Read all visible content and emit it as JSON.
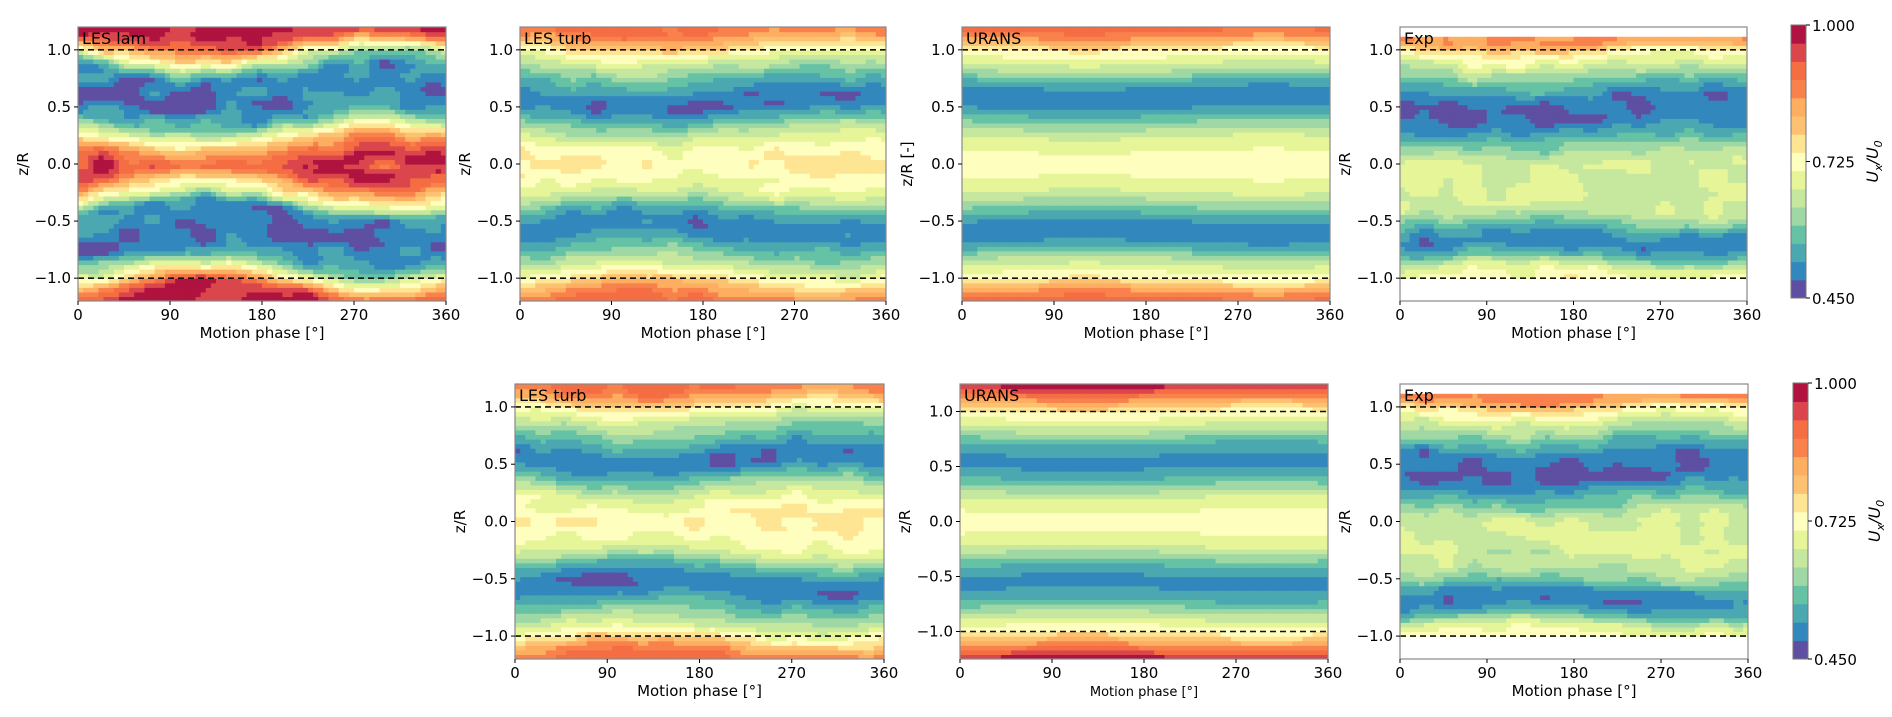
{
  "figure": {
    "description": "Phase-averaged streamwise velocity contours U_x/U_0 versus motion phase and z/R for several simulation methods and experiment"
  },
  "colorbar": {
    "label_main": "U",
    "label_sub1": "x",
    "label_sep": "/U",
    "label_sub2": "0",
    "min": 0.45,
    "max": 1.0,
    "ticks": [
      "1.000",
      "0.725",
      "0.450"
    ],
    "tick_values": [
      1.0,
      0.725,
      0.45
    ],
    "levels": 15,
    "colors": [
      "#5e4fa2",
      "#3288bd",
      "#4ba8b0",
      "#66c2a5",
      "#9fd8a4",
      "#c6e89e",
      "#e6f598",
      "#fefebe",
      "#fee593",
      "#fdc271",
      "#fdae61",
      "#f8814c",
      "#f46d43",
      "#da464c",
      "#b0133f"
    ]
  },
  "chart_data": [
    {
      "id": "top-les-lam",
      "row": 1,
      "type": "heatmap",
      "title": "LES lam",
      "xlabel": "Motion phase [°]",
      "ylabel": "z/R",
      "xlim": [
        0,
        360
      ],
      "ylim": [
        -1.2,
        1.2
      ],
      "xticks": [
        "0",
        "90",
        "180",
        "270",
        "360"
      ],
      "yticks": [
        "1.0",
        "0.5",
        "0.0",
        "−0.5",
        "−1.0"
      ],
      "ytick_values": [
        1.0,
        0.5,
        0.0,
        -0.5,
        -1.0
      ],
      "reference_lines": [
        1.0,
        -1.0
      ],
      "profile_z": [
        -1.2,
        -1.1,
        -1.0,
        -0.9,
        -0.8,
        -0.6,
        -0.4,
        -0.3,
        -0.2,
        -0.1,
        0.0,
        0.1,
        0.2,
        0.3,
        0.4,
        0.6,
        0.8,
        0.9,
        1.0,
        1.1,
        1.2
      ],
      "profile_u": [
        0.98,
        0.92,
        0.76,
        0.6,
        0.52,
        0.48,
        0.52,
        0.68,
        0.8,
        0.92,
        0.96,
        0.9,
        0.8,
        0.68,
        0.55,
        0.48,
        0.52,
        0.62,
        0.78,
        0.94,
        0.98
      ],
      "phase_modulation": 0.05,
      "noise": 0.05
    },
    {
      "id": "top-les-turb",
      "row": 1,
      "type": "heatmap",
      "title": "LES turb",
      "xlabel": "Motion phase [°]",
      "ylabel": "z/R",
      "xlim": [
        0,
        360
      ],
      "ylim": [
        -1.2,
        1.2
      ],
      "xticks": [
        "0",
        "90",
        "180",
        "270",
        "360"
      ],
      "yticks": [
        "1.0",
        "0.5",
        "0.0",
        "−0.5",
        "−1.0"
      ],
      "ytick_values": [
        1.0,
        0.5,
        0.0,
        -0.5,
        -1.0
      ],
      "reference_lines": [
        1.0,
        -1.0
      ],
      "profile_z": [
        -1.2,
        -1.1,
        -1.0,
        -0.9,
        -0.8,
        -0.6,
        -0.5,
        -0.4,
        -0.3,
        -0.2,
        0.0,
        0.2,
        0.3,
        0.4,
        0.5,
        0.6,
        0.8,
        0.9,
        1.0,
        1.1,
        1.2
      ],
      "profile_u": [
        0.9,
        0.84,
        0.74,
        0.66,
        0.6,
        0.5,
        0.5,
        0.55,
        0.64,
        0.7,
        0.75,
        0.7,
        0.64,
        0.56,
        0.5,
        0.5,
        0.6,
        0.66,
        0.74,
        0.84,
        0.9
      ],
      "phase_modulation": 0.03,
      "noise": 0.025
    },
    {
      "id": "top-urans",
      "row": 1,
      "type": "heatmap",
      "title": "URANS",
      "xlabel": "Motion phase [°]",
      "ylabel": "z/R [-]",
      "xlim": [
        0,
        360
      ],
      "ylim": [
        -1.2,
        1.2
      ],
      "xticks": [
        "0",
        "90",
        "180",
        "270",
        "360"
      ],
      "yticks": [
        "1.0",
        "0.5",
        "0.0",
        "−0.5",
        "−1.0"
      ],
      "ytick_values": [
        1.0,
        0.5,
        0.0,
        -0.5,
        -1.0
      ],
      "reference_lines": [
        1.0,
        -1.0
      ],
      "profile_z": [
        -1.2,
        -1.1,
        -1.0,
        -0.9,
        -0.8,
        -0.7,
        -0.6,
        -0.5,
        -0.4,
        -0.3,
        -0.2,
        0.0,
        0.2,
        0.3,
        0.4,
        0.5,
        0.6,
        0.7,
        0.8,
        0.9,
        1.0,
        1.1,
        1.2
      ],
      "profile_u": [
        0.92,
        0.84,
        0.74,
        0.68,
        0.62,
        0.53,
        0.5,
        0.52,
        0.58,
        0.64,
        0.69,
        0.73,
        0.69,
        0.64,
        0.58,
        0.52,
        0.5,
        0.53,
        0.62,
        0.68,
        0.74,
        0.84,
        0.92
      ],
      "phase_modulation": 0.012,
      "noise": 0.0
    },
    {
      "id": "top-exp",
      "row": 1,
      "type": "heatmap",
      "title": "Exp",
      "xlabel": "Motion phase [°]",
      "ylabel": "z/R",
      "xlim": [
        0,
        360
      ],
      "ylim": [
        -1.2,
        1.2
      ],
      "xticks": [
        "0",
        "90",
        "180",
        "270",
        "360"
      ],
      "yticks": [
        "1.0",
        "0.5",
        "0.0",
        "−0.5",
        "−1.0"
      ],
      "ytick_values": [
        1.0,
        0.5,
        0.0,
        -0.5,
        -1.0
      ],
      "reference_lines": [
        1.0,
        -1.0
      ],
      "data_zrange": [
        -1.0,
        1.1
      ],
      "profile_z": [
        -1.0,
        -0.9,
        -0.8,
        -0.7,
        -0.6,
        -0.5,
        -0.4,
        -0.2,
        0.0,
        0.1,
        0.2,
        0.3,
        0.4,
        0.5,
        0.6,
        0.7,
        0.8,
        0.9,
        1.0,
        1.05,
        1.1
      ],
      "profile_u": [
        0.72,
        0.68,
        0.56,
        0.5,
        0.52,
        0.6,
        0.66,
        0.67,
        0.68,
        0.64,
        0.58,
        0.52,
        0.48,
        0.48,
        0.5,
        0.56,
        0.63,
        0.69,
        0.76,
        0.84,
        0.86
      ],
      "phase_modulation": 0.02,
      "noise": 0.03
    },
    {
      "id": "bottom-les-turb",
      "row": 2,
      "type": "heatmap",
      "title": "LES turb",
      "xlabel": "Motion phase [°]",
      "ylabel": "z/R",
      "xlim": [
        0,
        360
      ],
      "ylim": [
        -1.2,
        1.2
      ],
      "xticks": [
        "0",
        "90",
        "180",
        "270",
        "360"
      ],
      "yticks": [
        "1.0",
        "0.5",
        "0.0",
        "−0.5",
        "−1.0"
      ],
      "ytick_values": [
        1.0,
        0.5,
        0.0,
        -0.5,
        -1.0
      ],
      "reference_lines": [
        1.0,
        -1.0
      ],
      "profile_z": [
        -1.2,
        -1.1,
        -1.0,
        -0.9,
        -0.8,
        -0.6,
        -0.5,
        -0.4,
        -0.3,
        -0.2,
        0.0,
        0.2,
        0.3,
        0.4,
        0.5,
        0.6,
        0.8,
        0.9,
        1.0,
        1.1,
        1.2
      ],
      "profile_u": [
        0.9,
        0.84,
        0.74,
        0.66,
        0.6,
        0.5,
        0.5,
        0.55,
        0.64,
        0.7,
        0.75,
        0.7,
        0.64,
        0.56,
        0.5,
        0.5,
        0.6,
        0.66,
        0.74,
        0.84,
        0.9
      ],
      "phase_modulation": 0.03,
      "noise": 0.025
    },
    {
      "id": "bottom-urans",
      "row": 2,
      "type": "heatmap",
      "title": "URANS",
      "xlabel": "Motion phase [°]",
      "ylabel": "z/R",
      "xlim": [
        0,
        360
      ],
      "ylim": [
        -1.25,
        1.25
      ],
      "xticks": [
        "0",
        "90",
        "180",
        "270",
        "360"
      ],
      "yticks": [
        "1.0",
        "0.5",
        "0.0",
        "−0.5",
        "−1.0"
      ],
      "ytick_values": [
        1.0,
        0.5,
        0.0,
        -0.5,
        -1.0
      ],
      "reference_lines": [
        1.0,
        -1.0
      ],
      "profile_z": [
        -1.25,
        -1.15,
        -1.0,
        -0.9,
        -0.8,
        -0.7,
        -0.6,
        -0.5,
        -0.4,
        -0.3,
        -0.2,
        0.0,
        0.2,
        0.3,
        0.4,
        0.5,
        0.6,
        0.7,
        0.8,
        0.9,
        1.0,
        1.15,
        1.25
      ],
      "profile_u": [
        0.98,
        0.88,
        0.74,
        0.68,
        0.62,
        0.55,
        0.52,
        0.52,
        0.56,
        0.62,
        0.68,
        0.73,
        0.68,
        0.62,
        0.56,
        0.52,
        0.52,
        0.55,
        0.62,
        0.68,
        0.74,
        0.88,
        0.98
      ],
      "phase_modulation": 0.012,
      "noise": 0.0
    },
    {
      "id": "bottom-exp",
      "row": 2,
      "type": "heatmap",
      "title": "Exp",
      "xlabel": "Motion phase [°]",
      "ylabel": "z/R",
      "xlim": [
        0,
        360
      ],
      "ylim": [
        -1.2,
        1.2
      ],
      "xticks": [
        "0",
        "90",
        "180",
        "270",
        "360"
      ],
      "yticks": [
        "1.0",
        "0.5",
        "0.0",
        "−0.5",
        "−1.0"
      ],
      "ytick_values": [
        1.0,
        0.5,
        0.0,
        -0.5,
        -1.0
      ],
      "reference_lines": [
        1.0,
        -1.0
      ],
      "data_zrange": [
        -1.0,
        1.1
      ],
      "profile_z": [
        -1.0,
        -0.9,
        -0.8,
        -0.7,
        -0.6,
        -0.5,
        -0.4,
        -0.2,
        0.0,
        0.1,
        0.2,
        0.3,
        0.4,
        0.5,
        0.6,
        0.7,
        0.8,
        0.9,
        1.0,
        1.05,
        1.1
      ],
      "profile_u": [
        0.72,
        0.68,
        0.56,
        0.5,
        0.52,
        0.6,
        0.65,
        0.67,
        0.67,
        0.64,
        0.58,
        0.52,
        0.48,
        0.48,
        0.5,
        0.56,
        0.63,
        0.69,
        0.76,
        0.84,
        0.86
      ],
      "phase_modulation": 0.02,
      "noise": 0.03
    }
  ]
}
